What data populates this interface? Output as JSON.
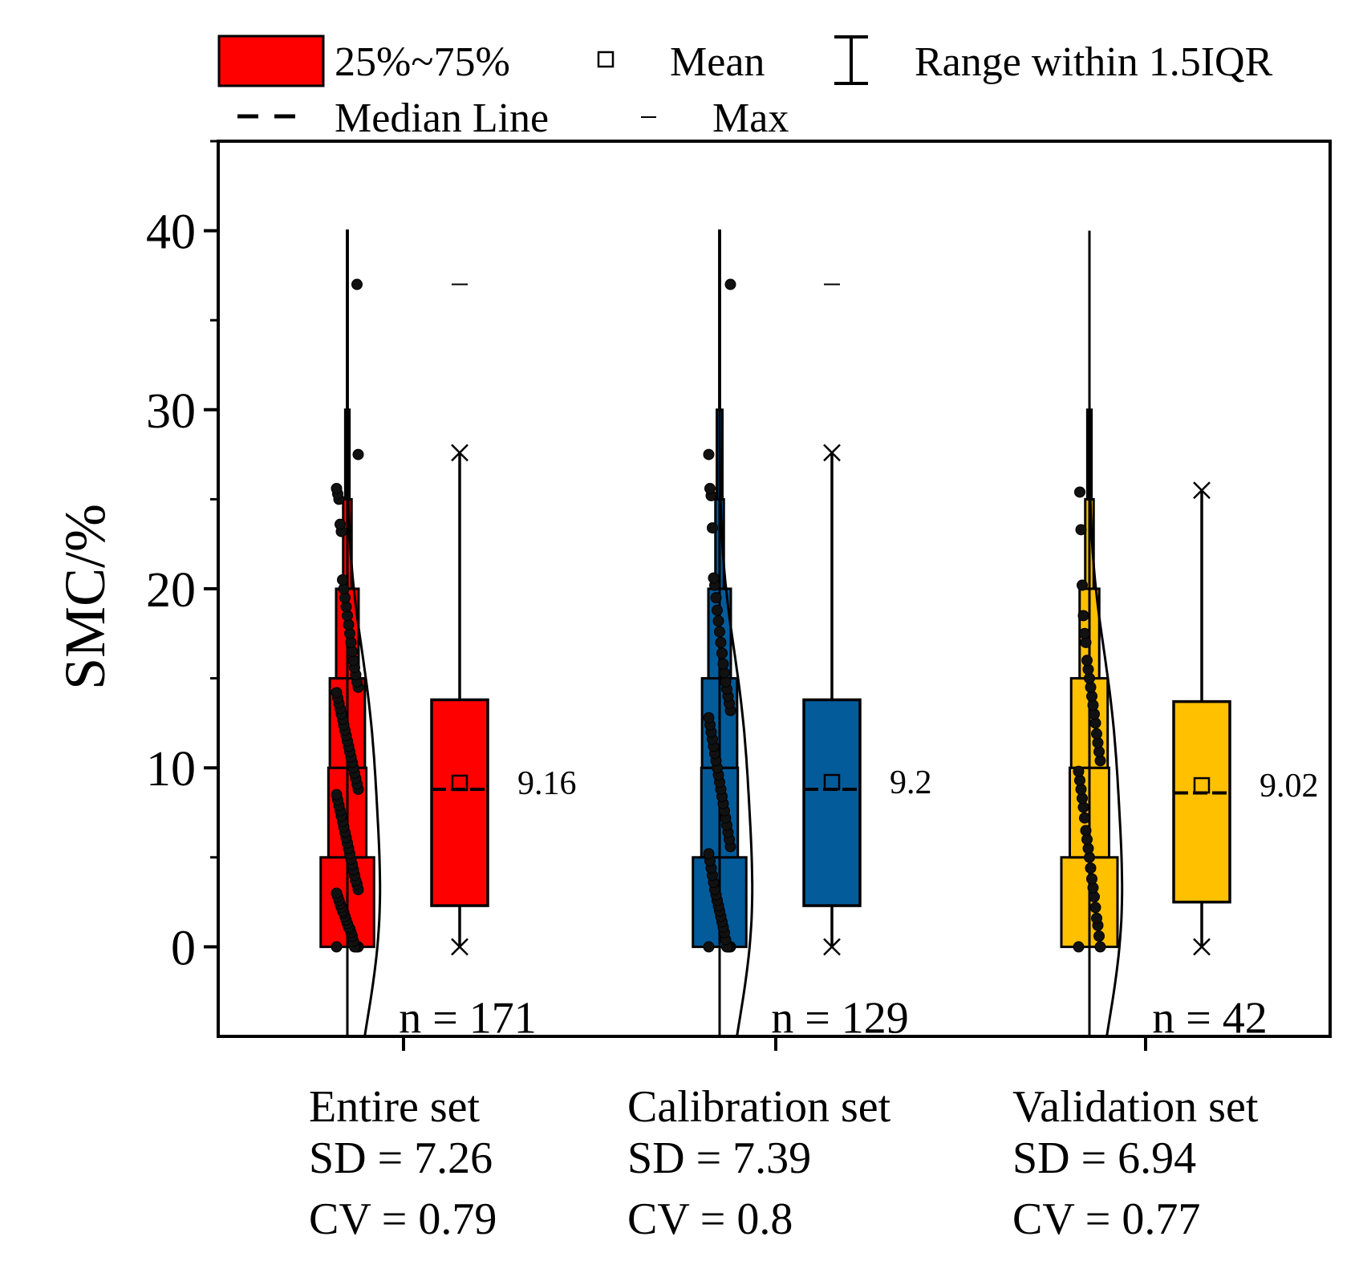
{
  "legend": {
    "iqr_label": "25%~75%",
    "mean_label": "Mean",
    "range_label": "Range within 1.5IQR",
    "median_label": "Median Line",
    "max_label": "Max"
  },
  "chart_data": {
    "type": "box",
    "ylabel": "SMC/%",
    "xlabel": "",
    "ylim": [
      -5,
      45
    ],
    "yticks": [
      0,
      10,
      20,
      30,
      40
    ],
    "ytick_labels": [
      "0",
      "10",
      "20",
      "30",
      "40"
    ],
    "grid": false,
    "legend_position": "top",
    "colors": {
      "Entire set": "#ff0000",
      "Calibration set": "#045b9a",
      "Validation set": "#ffc000"
    },
    "groups": [
      {
        "name": "Entire set",
        "n_label": "n = 171",
        "sd_label": "SD = 7.26",
        "cv_label": "CV = 0.79",
        "mean_label": "9.16",
        "mean": 9.16,
        "median": 8.8,
        "q1": 2.3,
        "q3": 13.8,
        "whisker_low": 0,
        "whisker_high": 27.6,
        "max": 37,
        "histogram_bins": [
          [
            0,
            5,
            0.38
          ],
          [
            5,
            10,
            0.27
          ],
          [
            10,
            15,
            0.25
          ],
          [
            15,
            20,
            0.16
          ],
          [
            20,
            25,
            0.06
          ],
          [
            25,
            30,
            0.03
          ],
          [
            30,
            40,
            0.005
          ]
        ],
        "points": [
          0,
          0,
          0,
          0,
          0,
          0.3,
          0.6,
          0.8,
          1,
          1.1,
          1.3,
          1.5,
          1.7,
          1.9,
          2,
          2.2,
          2.4,
          2.6,
          2.8,
          3,
          3.2,
          3.5,
          3.7,
          4,
          4.3,
          4.6,
          4.9,
          5.2,
          5.5,
          5.8,
          6.1,
          6.4,
          6.7,
          7,
          7.3,
          7.6,
          7.9,
          8.2,
          8.5,
          8.8,
          9.1,
          9.4,
          9.7,
          10,
          10.3,
          10.6,
          10.9,
          11.2,
          11.5,
          11.8,
          12.1,
          12.4,
          12.7,
          13,
          13.3,
          13.6,
          13.9,
          14.2,
          14.5,
          14.8,
          15.2,
          15.6,
          16,
          16.5,
          17,
          17.5,
          18,
          18.5,
          19,
          19.5,
          20,
          20.5,
          23.2,
          23.6,
          25,
          25.3,
          25.6,
          27.5,
          37
        ]
      },
      {
        "name": "Calibration set",
        "n_label": "n = 129",
        "sd_label": "SD = 7.39",
        "cv_label": "CV = 0.8",
        "mean_label": "9.2",
        "mean": 9.2,
        "median": 8.8,
        "q1": 2.3,
        "q3": 13.8,
        "whisker_low": 0,
        "whisker_high": 27.6,
        "max": 37,
        "histogram_bins": [
          [
            0,
            5,
            0.38
          ],
          [
            5,
            10,
            0.26
          ],
          [
            10,
            15,
            0.25
          ],
          [
            15,
            20,
            0.16
          ],
          [
            20,
            25,
            0.06
          ],
          [
            25,
            30,
            0.04
          ],
          [
            30,
            40,
            0.005
          ]
        ],
        "points": [
          0,
          0,
          0,
          0,
          0,
          0.4,
          0.8,
          1.1,
          1.4,
          1.7,
          2,
          2.3,
          2.6,
          2.9,
          3.2,
          3.6,
          4,
          4.4,
          4.8,
          5.2,
          5.6,
          6,
          6.4,
          6.8,
          7.2,
          7.6,
          8,
          8.4,
          8.8,
          9.2,
          9.6,
          10,
          10.4,
          10.8,
          11.2,
          11.6,
          12,
          12.4,
          12.8,
          13.2,
          13.6,
          14,
          14.4,
          14.8,
          15.3,
          15.8,
          16.4,
          17,
          17.6,
          18.2,
          18.8,
          19.5,
          20.2,
          20.6,
          23.4,
          25.2,
          25.6,
          27.5,
          37
        ]
      },
      {
        "name": "Validation set",
        "n_label": "n = 42",
        "sd_label": "SD = 6.94",
        "cv_label": "CV = 0.77",
        "mean_label": "9.02",
        "mean": 9.02,
        "median": 8.6,
        "q1": 2.5,
        "q3": 13.7,
        "whisker_low": 0,
        "whisker_high": 25.5,
        "max": 25.5,
        "histogram_bins": [
          [
            0,
            5,
            0.4
          ],
          [
            5,
            10,
            0.28
          ],
          [
            10,
            15,
            0.26
          ],
          [
            15,
            20,
            0.14
          ],
          [
            20,
            25,
            0.06
          ],
          [
            25,
            30,
            0.03
          ]
        ],
        "points": [
          0,
          0,
          0.6,
          1.2,
          1.6,
          2.2,
          2.8,
          3.3,
          3.8,
          4.4,
          5,
          5.5,
          6,
          6.5,
          7.2,
          7.8,
          8.3,
          8.8,
          9.3,
          9.8,
          10.4,
          10.9,
          11.4,
          11.9,
          12.5,
          13,
          13.5,
          14,
          14.5,
          15,
          15.5,
          16,
          17,
          17.5,
          18.5,
          20.2,
          23.3,
          25.4
        ]
      }
    ]
  }
}
